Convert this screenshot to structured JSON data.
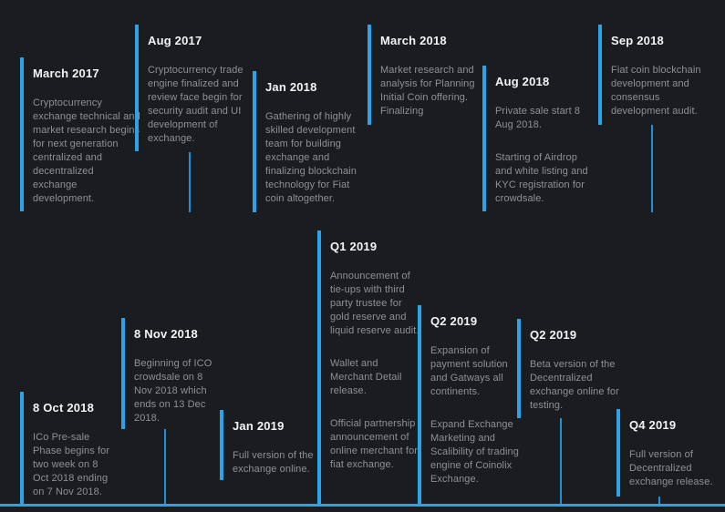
{
  "page": {
    "background": "#1a1c20",
    "accent": "#2aa3e8",
    "connector_color": "#1f90da",
    "title_color": "#f2f4f6",
    "body_color": "#8d9196"
  },
  "timeline": {
    "entries": [
      {
        "id": "march-2017",
        "date": "March 2017",
        "paragraphs": [
          "Cryptocurrency exchange technical and market research begins for next generation centralized and decentralized exchange development."
        ]
      },
      {
        "id": "aug-2017",
        "date": "Aug 2017",
        "paragraphs": [
          "Cryptocurrency trade engine finalized and review face begin for security audit and UI development of exchange."
        ]
      },
      {
        "id": "jan-2018",
        "date": "Jan 2018",
        "paragraphs": [
          "Gathering of highly skilled development team for building exchange and finalizing blockchain technology for Fiat coin altogether."
        ]
      },
      {
        "id": "march-2018",
        "date": "March 2018",
        "paragraphs": [
          "Market research and analysis for Planning Initial Coin offering. Finalizing"
        ]
      },
      {
        "id": "aug-2018",
        "date": "Aug 2018",
        "paragraphs": [
          "Private sale start 8 Aug 2018.",
          "Starting of Airdrop and white listing and KYC registration for crowdsale."
        ]
      },
      {
        "id": "sep-2018",
        "date": "Sep 2018",
        "paragraphs": [
          "Fiat coin blockchain development and consensus development audit."
        ]
      },
      {
        "id": "8-oct-2018",
        "date": "8 Oct 2018",
        "paragraphs": [
          "ICo Pre-sale Phase begins for two week on 8 Oct 2018 ending on 7 Nov 2018."
        ]
      },
      {
        "id": "8-nov-2018",
        "date": "8 Nov 2018",
        "paragraphs": [
          "Beginning of ICO crowdsale on 8 Nov 2018 which ends on 13 Dec 2018."
        ]
      },
      {
        "id": "jan-2019",
        "date": "Jan 2019",
        "paragraphs": [
          "Full version of the exchange online."
        ]
      },
      {
        "id": "q1-2019",
        "date": "Q1 2019",
        "paragraphs": [
          "Announcement of tie-ups with third party trustee for gold reserve and liquid reserve audit.",
          "Wallet and Merchant Detail release.",
          "Official partnership announcement of online merchant for fiat exchange."
        ]
      },
      {
        "id": "q2-2019-a",
        "date": "Q2 2019",
        "paragraphs": [
          "Expansion of payment solution and Gatways all continents.",
          "Expand Exchange Marketing and Scalibility of trading engine of Coinolix Exchange."
        ]
      },
      {
        "id": "q2-2019-b",
        "date": "Q2 2019",
        "paragraphs": [
          "Beta version of the Decentralized exchange online for testing."
        ]
      },
      {
        "id": "q4-2019",
        "date": "Q4 2019",
        "paragraphs": [
          "Full version of Decentralized exchange release."
        ]
      }
    ]
  }
}
